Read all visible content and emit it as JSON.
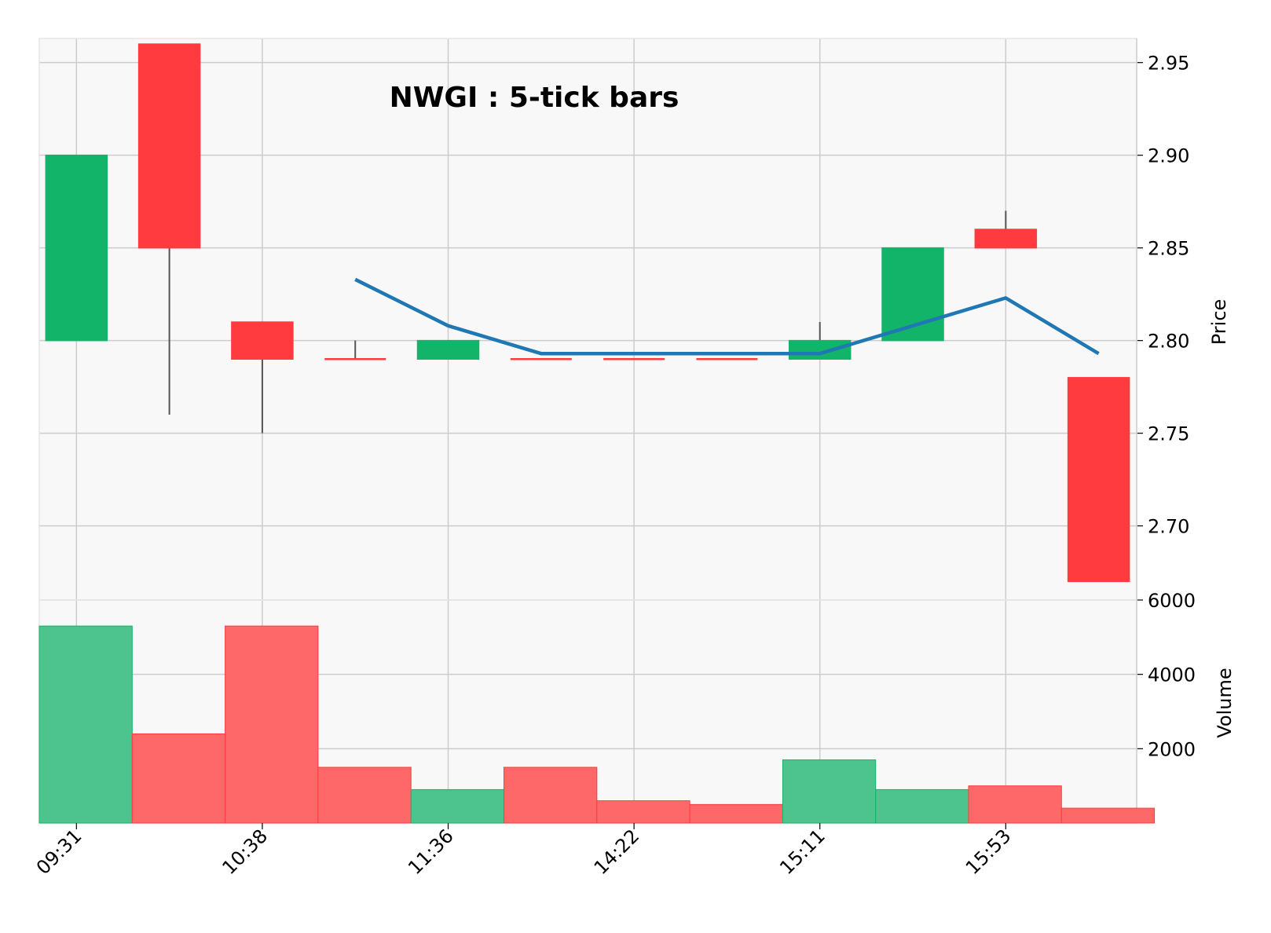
{
  "chart_data": {
    "type": "candlestick",
    "title": "NWGI : 5-tick bars",
    "x_tick_labels": [
      "09:31",
      "10:38",
      "11:36",
      "14:22",
      "15:11",
      "15:53"
    ],
    "x_tick_bar_index": [
      0,
      2,
      4,
      6,
      8,
      10
    ],
    "price": {
      "ylabel": "Price",
      "ylim": [
        2.66,
        2.963
      ],
      "ticks": [
        "2.70",
        "2.75",
        "2.80",
        "2.85",
        "2.90",
        "2.95"
      ],
      "tick_values": [
        2.7,
        2.75,
        2.8,
        2.85,
        2.9,
        2.95
      ]
    },
    "volume": {
      "ylabel": "Volume",
      "ylim": [
        0,
        6000
      ],
      "ticks": [
        "2000",
        "4000",
        "6000"
      ],
      "tick_values": [
        2000,
        4000,
        6000
      ]
    },
    "bars": [
      {
        "open": 2.8,
        "high": 2.9,
        "low": 2.8,
        "close": 2.9,
        "volume": 5300,
        "direction": "up"
      },
      {
        "open": 2.96,
        "high": 2.96,
        "low": 2.76,
        "close": 2.85,
        "volume": 2400,
        "direction": "down"
      },
      {
        "open": 2.81,
        "high": 2.81,
        "low": 2.75,
        "close": 2.79,
        "volume": 5300,
        "direction": "down"
      },
      {
        "open": 2.79,
        "high": 2.8,
        "low": 2.79,
        "close": 2.79,
        "volume": 1500,
        "direction": "down"
      },
      {
        "open": 2.79,
        "high": 2.8,
        "low": 2.79,
        "close": 2.8,
        "volume": 900,
        "direction": "up"
      },
      {
        "open": 2.79,
        "high": 2.79,
        "low": 2.79,
        "close": 2.79,
        "volume": 1500,
        "direction": "down"
      },
      {
        "open": 2.79,
        "high": 2.79,
        "low": 2.79,
        "close": 2.79,
        "volume": 600,
        "direction": "down"
      },
      {
        "open": 2.79,
        "high": 2.79,
        "low": 2.79,
        "close": 2.79,
        "volume": 500,
        "direction": "down"
      },
      {
        "open": 2.79,
        "high": 2.81,
        "low": 2.79,
        "close": 2.8,
        "volume": 1700,
        "direction": "up"
      },
      {
        "open": 2.8,
        "high": 2.85,
        "low": 2.8,
        "close": 2.85,
        "volume": 900,
        "direction": "up"
      },
      {
        "open": 2.86,
        "high": 2.87,
        "low": 2.85,
        "close": 2.85,
        "volume": 1000,
        "direction": "down"
      },
      {
        "open": 2.78,
        "high": 2.78,
        "low": 2.67,
        "close": 2.67,
        "volume": 400,
        "direction": "down"
      }
    ],
    "moving_average": {
      "start_index": 3,
      "values": [
        2.833,
        2.808,
        2.793,
        2.793,
        2.793,
        2.793,
        2.808,
        2.823,
        2.793
      ]
    },
    "colors": {
      "up": "#12b46a",
      "down": "#ff3b3f",
      "up_volume": "#4dc48e",
      "down_volume": "#ff6868",
      "wick": "#555555",
      "moving_average": "#1f77b4",
      "plot_background": "#f8f8f8",
      "grid": "#cccccc"
    }
  }
}
